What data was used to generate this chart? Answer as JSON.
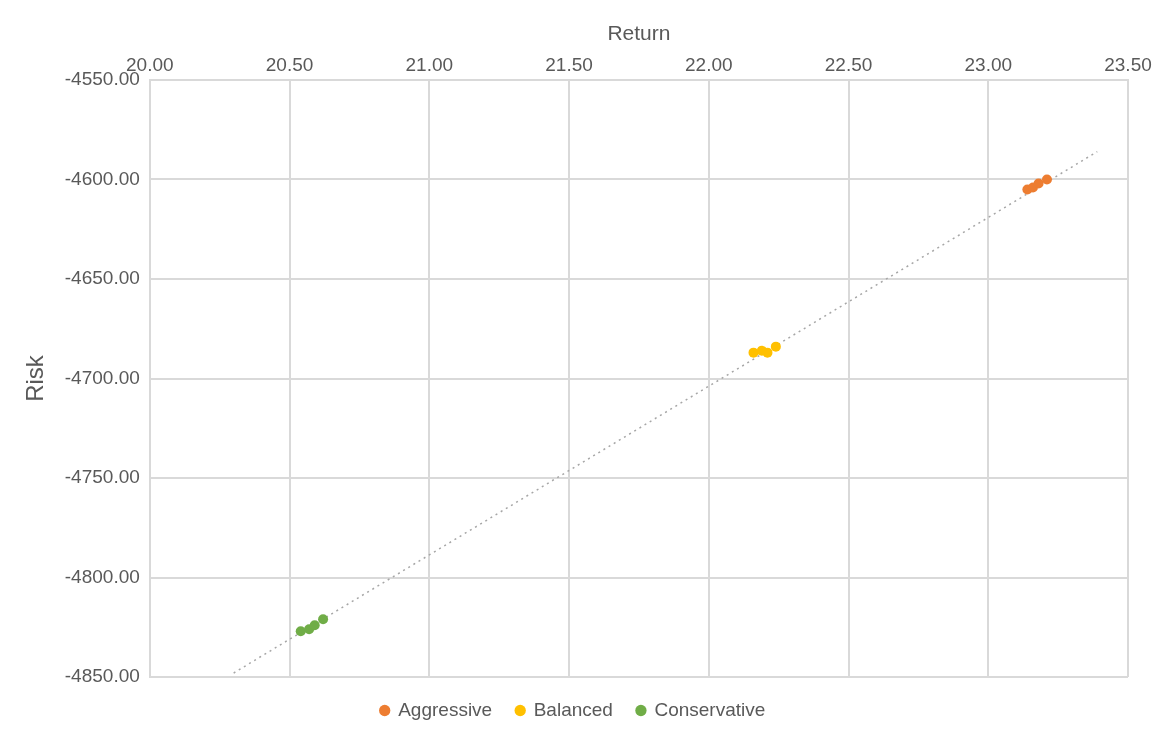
{
  "chart_data": {
    "type": "scatter",
    "xlabel": "Return",
    "ylabel": "Risk",
    "xlim": [
      20,
      23.5
    ],
    "xticks": [
      {
        "value": 20,
        "label": "20.00"
      },
      {
        "value": 20.5,
        "label": "20.50"
      },
      {
        "value": 21,
        "label": "21.00"
      },
      {
        "value": 21.5,
        "label": "21.50"
      },
      {
        "value": 22,
        "label": "22.00"
      },
      {
        "value": 22.5,
        "label": "22.50"
      },
      {
        "value": 23,
        "label": "23.00"
      },
      {
        "value": 23.5,
        "label": "23.50"
      }
    ],
    "ylim": [
      -4850,
      -4550
    ],
    "yticks": [
      {
        "value": -4850,
        "label": "-4850.00"
      },
      {
        "value": -4800,
        "label": "-4800.00"
      },
      {
        "value": -4750,
        "label": "-4750.00"
      },
      {
        "value": -4700,
        "label": "-4700.00"
      },
      {
        "value": -4650,
        "label": "-4650.00"
      },
      {
        "value": -4600,
        "label": "-4600.00"
      },
      {
        "value": -4550,
        "label": "-4550.00"
      }
    ],
    "grid": true,
    "legend": "bottom",
    "marker": "circle",
    "series": [
      {
        "name": "Aggressive",
        "color": "#ed7d31",
        "x": [
          23.14,
          23.16,
          23.18,
          23.21
        ],
        "values": [
          -4605,
          -4604,
          -4602,
          -4600
        ]
      },
      {
        "name": "Balanced",
        "color": "#ffc000",
        "x": [
          22.16,
          22.19,
          22.21,
          22.24
        ],
        "values": [
          -4687,
          -4686,
          -4687,
          -4684
        ]
      },
      {
        "name": "Conservative",
        "color": "#70ad47",
        "x": [
          20.54,
          20.57,
          20.59,
          20.62
        ],
        "values": [
          -4827,
          -4826,
          -4824,
          -4821
        ]
      },
      {
        "type": "line",
        "color": "#a6a6a6",
        "line_style": "dotted",
        "marker": "none",
        "x": [
          20.3,
          23.39
        ],
        "values": [
          -4848,
          -4586
        ]
      }
    ]
  }
}
